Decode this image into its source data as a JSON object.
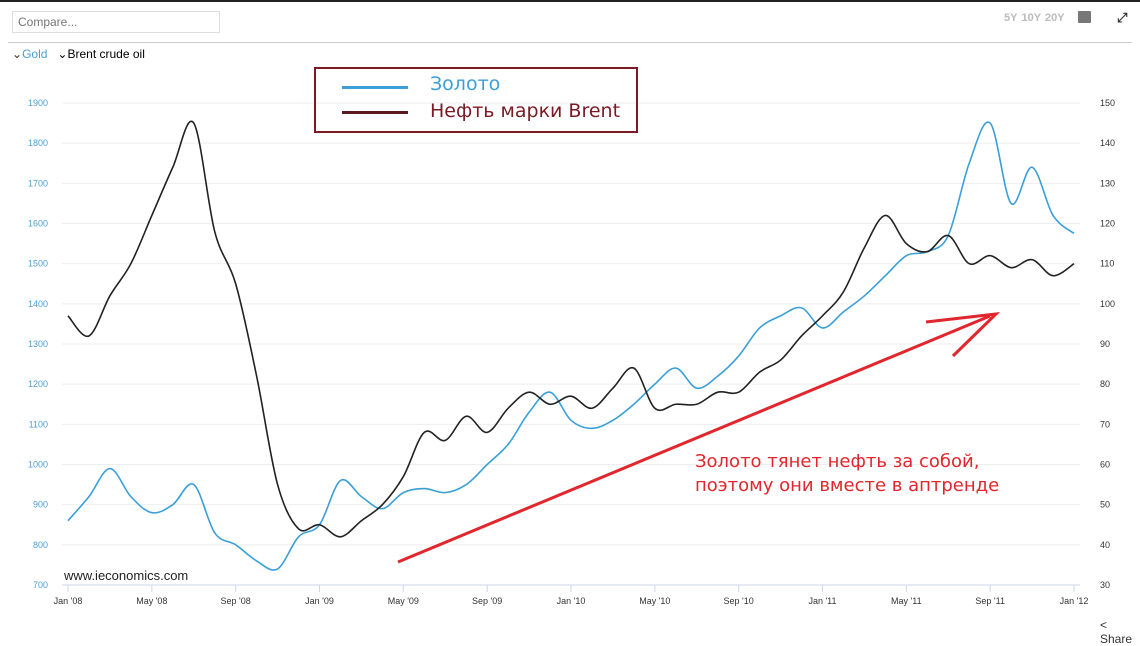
{
  "toolbar": {
    "compare_placeholder": "Compare...",
    "ranges": [
      "5Y",
      "10Y",
      "20Y"
    ],
    "calendar_icon": "calendar-icon",
    "fullscreen_icon": "expand-icon"
  },
  "series_toggles": [
    {
      "label": "Gold",
      "color": "#4a9fd4"
    },
    {
      "label": "Brent crude oil",
      "color": "#222222"
    }
  ],
  "legend": {
    "gold": "Золото",
    "brent": "Нефть марки Brent"
  },
  "annotation": {
    "line1": "Золото тянет нефть за собой,",
    "line2": "поэтому они вместе в аптренде"
  },
  "watermark": "www.ieconomics.com",
  "share_label": "Share",
  "colors": {
    "gold": "#3a9fd8",
    "brent": "#222222",
    "annotation": "#e1262d",
    "legend_border": "#7a1a25"
  },
  "chart_data": {
    "type": "line",
    "x_start": "Jan 2008",
    "x_step": "month",
    "xticks": [
      "Jan '08",
      "May '08",
      "Sep '08",
      "Jan '09",
      "May '09",
      "Sep '09",
      "Jan '10",
      "May '10",
      "Sep '10",
      "Jan '11",
      "May '11",
      "Sep '11",
      "Jan '12"
    ],
    "y_left": {
      "ticks": [
        "700",
        "800",
        "900",
        "1000",
        "1100",
        "1200",
        "1300",
        "1400",
        "1500",
        "1600",
        "1700",
        "1800",
        "1900"
      ],
      "range": [
        700,
        1900
      ]
    },
    "y_right": {
      "ticks": [
        "30",
        "40",
        "50",
        "60",
        "70",
        "80",
        "90",
        "100",
        "110",
        "120",
        "130",
        "140",
        "150"
      ],
      "range": [
        30,
        150
      ]
    },
    "series": [
      {
        "name": "Gold",
        "axis": "left",
        "values": [
          860,
          920,
          990,
          920,
          880,
          900,
          950,
          830,
          800,
          760,
          740,
          820,
          850,
          960,
          920,
          890,
          930,
          940,
          930,
          950,
          1000,
          1050,
          1130,
          1180,
          1110,
          1090,
          1110,
          1150,
          1200,
          1240,
          1190,
          1220,
          1270,
          1340,
          1370,
          1390,
          1340,
          1380,
          1420,
          1470,
          1520,
          1530,
          1570,
          1750,
          1850,
          1650,
          1740,
          1620,
          1575
        ]
      },
      {
        "name": "Brent crude oil",
        "axis": "right",
        "values": [
          97,
          92,
          102,
          110,
          122,
          134,
          145,
          118,
          105,
          82,
          55,
          44,
          45,
          42,
          46,
          50,
          57,
          68,
          66,
          72,
          68,
          74,
          78,
          75,
          77,
          74,
          79,
          84,
          74,
          75,
          75,
          78,
          78,
          83,
          86,
          92,
          97,
          103,
          114,
          122,
          115,
          113,
          117,
          110,
          112,
          109,
          111,
          107,
          110
        ]
      }
    ]
  }
}
